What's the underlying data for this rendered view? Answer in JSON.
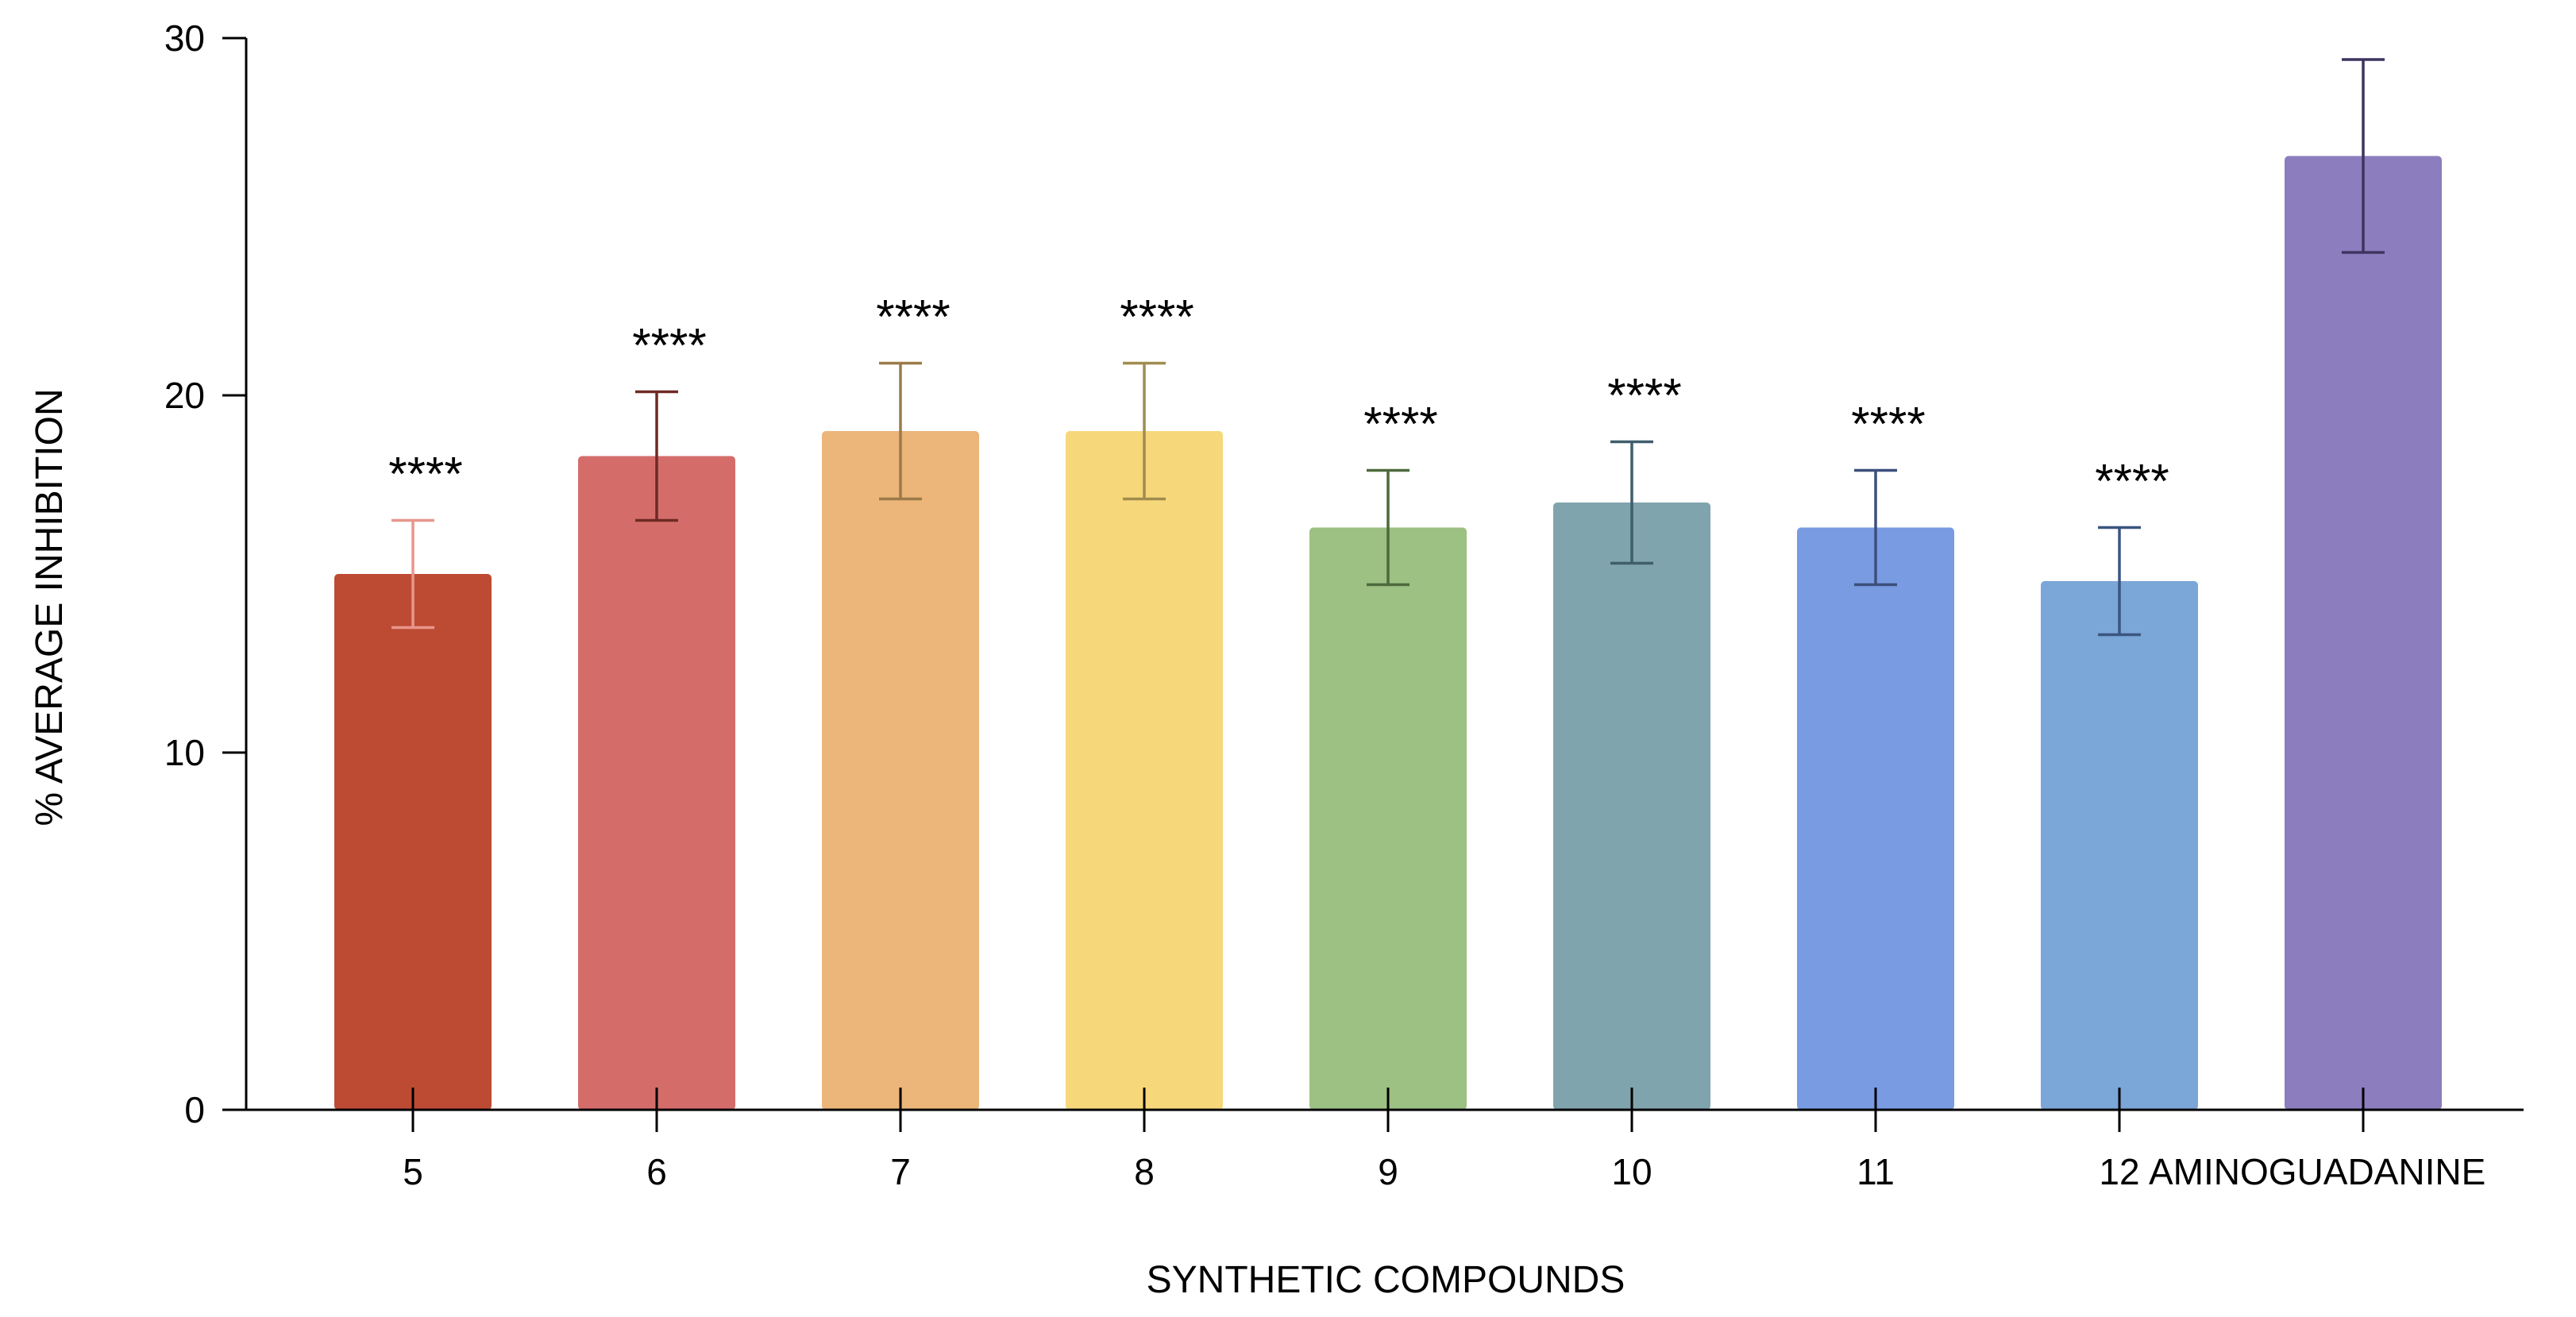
{
  "chart_data": {
    "type": "bar",
    "title": "",
    "xlabel": "SYNTHETIC COMPOUNDS",
    "ylabel": "% AVERAGE INHIBITION",
    "ylim": [
      0,
      30
    ],
    "yticks": [
      0,
      10,
      20,
      30
    ],
    "grid": false,
    "categories": [
      "5",
      "6",
      "7",
      "8",
      "9",
      "10",
      "11",
      "12",
      "AMINOGUADANINE"
    ],
    "values": [
      15.0,
      18.3,
      19.0,
      19.0,
      16.3,
      17.0,
      16.3,
      14.8,
      26.7
    ],
    "errors": [
      1.5,
      1.8,
      1.9,
      1.9,
      1.6,
      1.7,
      1.6,
      1.5,
      2.7
    ],
    "significance": [
      "****",
      "****",
      "****",
      "****",
      "****",
      "****",
      "****",
      "****",
      ""
    ],
    "bar_colors": [
      "#bd4b33",
      "#d46d6a",
      "#ecb579",
      "#f6d87a",
      "#9dc083",
      "#7fa4ad",
      "#789be2",
      "#7ba6d8",
      "#8c7dbe"
    ],
    "error_colors": [
      "#e8968c",
      "#6e2a24",
      "#9a7b49",
      "#a08c4f",
      "#4d6a3d",
      "#3f5e6a",
      "#3c4f7c",
      "#3b5580",
      "#3e3460"
    ]
  }
}
